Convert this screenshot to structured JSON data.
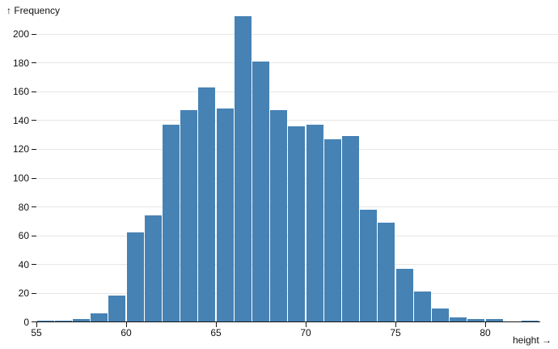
{
  "chart_data": {
    "type": "bar",
    "subtype": "histogram",
    "title": "",
    "y_axis_label": "↑ Frequency",
    "x_axis_label": "height →",
    "bar_color": "#4682b4",
    "grid": "horizontal",
    "gridline_color": "#e7e7e7",
    "axis_color": "#161616",
    "bin_width": 1,
    "bins": [
      {
        "x0": 55,
        "x1": 56,
        "count": 1
      },
      {
        "x0": 56,
        "x1": 57,
        "count": 1
      },
      {
        "x0": 57,
        "x1": 58,
        "count": 2
      },
      {
        "x0": 58,
        "x1": 59,
        "count": 6
      },
      {
        "x0": 59,
        "x1": 60,
        "count": 18
      },
      {
        "x0": 60,
        "x1": 61,
        "count": 62
      },
      {
        "x0": 61,
        "x1": 62,
        "count": 74
      },
      {
        "x0": 62,
        "x1": 63,
        "count": 137
      },
      {
        "x0": 63,
        "x1": 64,
        "count": 147
      },
      {
        "x0": 64,
        "x1": 65,
        "count": 163
      },
      {
        "x0": 65,
        "x1": 66,
        "count": 148
      },
      {
        "x0": 66,
        "x1": 67,
        "count": 212
      },
      {
        "x0": 67,
        "x1": 68,
        "count": 181
      },
      {
        "x0": 68,
        "x1": 69,
        "count": 147
      },
      {
        "x0": 69,
        "x1": 70,
        "count": 136
      },
      {
        "x0": 70,
        "x1": 71,
        "count": 137
      },
      {
        "x0": 71,
        "x1": 72,
        "count": 127
      },
      {
        "x0": 72,
        "x1": 73,
        "count": 129
      },
      {
        "x0": 73,
        "x1": 74,
        "count": 78
      },
      {
        "x0": 74,
        "x1": 75,
        "count": 69
      },
      {
        "x0": 75,
        "x1": 76,
        "count": 37
      },
      {
        "x0": 76,
        "x1": 77,
        "count": 21
      },
      {
        "x0": 77,
        "x1": 78,
        "count": 9
      },
      {
        "x0": 78,
        "x1": 79,
        "count": 3
      },
      {
        "x0": 79,
        "x1": 80,
        "count": 2
      },
      {
        "x0": 80,
        "x1": 81,
        "count": 2
      },
      {
        "x0": 81,
        "x1": 82,
        "count": 0
      },
      {
        "x0": 82,
        "x1": 83,
        "count": 1
      }
    ],
    "x_ticks": [
      55,
      60,
      65,
      70,
      75,
      80
    ],
    "y_ticks": [
      0,
      20,
      40,
      60,
      80,
      100,
      120,
      140,
      160,
      180,
      200
    ],
    "xlim": [
      55,
      83
    ],
    "ylim": [
      0,
      212
    ]
  }
}
